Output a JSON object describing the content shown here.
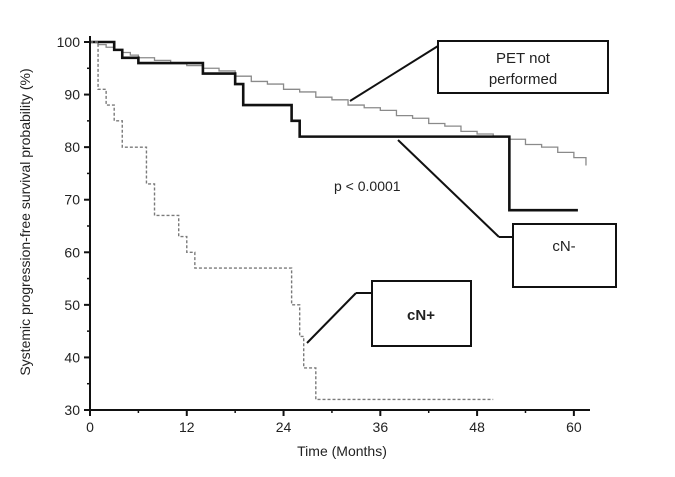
{
  "chart_data": {
    "type": "line",
    "subtype": "kaplan-meier step",
    "xlabel": "Time (Months)",
    "ylabel": "Systemic progression-free survival probability (%)",
    "xlim": [
      0,
      62
    ],
    "ylim": [
      30,
      100
    ],
    "x_ticks": [
      0,
      12,
      24,
      36,
      48,
      60
    ],
    "y_ticks": [
      30,
      40,
      50,
      60,
      70,
      80,
      90,
      100
    ],
    "grid": false,
    "annotation": "p < 0.0001",
    "series": [
      {
        "name": "PET not performed",
        "style": "thin gray step",
        "color": "#8a8a8a",
        "x": [
          0,
          1,
          2,
          3,
          4,
          5,
          6,
          8,
          10,
          12,
          14,
          16,
          18,
          20,
          22,
          24,
          26,
          28,
          30,
          32,
          34,
          36,
          38,
          40,
          42,
          44,
          46,
          48,
          50,
          52,
          54,
          56,
          58,
          60,
          61.5
        ],
        "y": [
          100,
          99.5,
          99,
          98.5,
          98,
          97.5,
          97,
          96.5,
          96,
          95.5,
          95,
          94.5,
          93.5,
          92.5,
          92,
          91,
          90.5,
          89.5,
          89,
          88,
          87.5,
          87,
          86,
          85.5,
          84.5,
          84,
          83,
          82.5,
          82,
          81.5,
          80.5,
          80,
          79,
          78,
          76.5
        ]
      },
      {
        "name": "cN-",
        "style": "thick black step",
        "color": "#111111",
        "x": [
          0,
          3,
          4,
          6,
          14,
          18,
          19,
          25,
          26,
          52,
          60.5
        ],
        "y": [
          100,
          98.5,
          97,
          96,
          94,
          92,
          88,
          85,
          82,
          68,
          68
        ]
      },
      {
        "name": "cN+",
        "style": "dashed gray step",
        "color": "#7a7a7a",
        "x": [
          0,
          1,
          2,
          3,
          4,
          7,
          8,
          11,
          12,
          13,
          23,
          25,
          26,
          26.5,
          28,
          50
        ],
        "y": [
          100,
          91,
          88,
          85,
          80,
          73,
          67,
          63,
          60,
          57,
          57,
          50,
          44,
          38,
          32,
          32
        ]
      }
    ]
  },
  "callouts": {
    "pet": {
      "line1": "PET not",
      "line2": "performed"
    },
    "cn_neg": "cN-",
    "cn_pos": "cN+"
  }
}
